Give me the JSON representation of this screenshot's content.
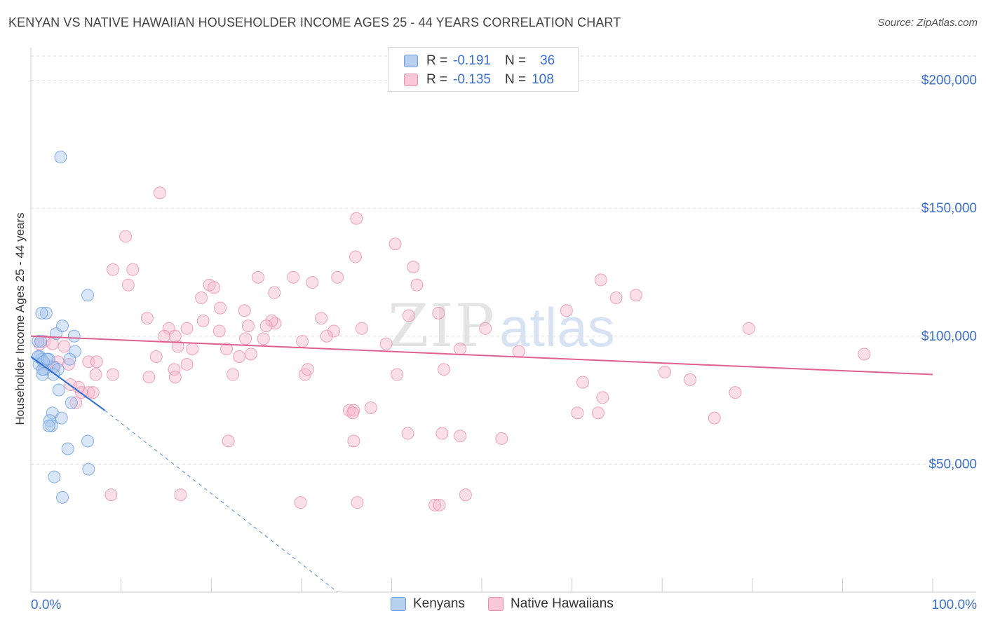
{
  "title": "KENYAN VS NATIVE HAWAIIAN HOUSEHOLDER INCOME AGES 25 - 44 YEARS CORRELATION CHART",
  "source": "Source: ZipAtlas.com",
  "watermark": {
    "zip": "ZIP",
    "atlas": "atlas"
  },
  "legend": {
    "r_label": "R =",
    "n_label": "N =",
    "series": [
      {
        "name": "Kenyans",
        "r": "-0.191",
        "n": "36",
        "fill": "#b8d0f0",
        "stroke": "#6f9fe0"
      },
      {
        "name": "Native Hawaiians",
        "r": "-0.135",
        "n": "108",
        "fill": "#f8c8d8",
        "stroke": "#e890b0"
      }
    ]
  },
  "colors": {
    "kenyan_point": "#a9c7f0",
    "kenyan_line": "#2a6dd8",
    "hawaiian_point": "#f6b9cd",
    "hawaiian_line": "#e0608f",
    "axis_label": "#3a6fd0",
    "grid": "#dddddd"
  },
  "chart_data": {
    "type": "scatter",
    "title": "KENYAN VS NATIVE HAWAIIAN HOUSEHOLDER INCOME AGES 25 - 44 YEARS CORRELATION CHART",
    "xlabel": "",
    "ylabel": "Householder Income Ages 25 - 44 years",
    "xlim": [
      0,
      100
    ],
    "ylim": [
      0,
      210000
    ],
    "x_tick_labels": [
      "0.0%",
      "100.0%"
    ],
    "y_ticks": [
      50000,
      100000,
      150000,
      200000
    ],
    "y_tick_labels": [
      "$50,000",
      "$100,000",
      "$150,000",
      "$200,000"
    ],
    "grid": true,
    "legend_position": "top-center",
    "series": [
      {
        "name": "Kenyans",
        "points": [
          [
            3.3,
            170000
          ],
          [
            0.8,
            98000
          ],
          [
            1.1,
            98000
          ],
          [
            1.0,
            92000
          ],
          [
            1.2,
            91000
          ],
          [
            0.9,
            89000
          ],
          [
            1.5,
            87000
          ],
          [
            1.3,
            85000
          ],
          [
            1.7,
            109000
          ],
          [
            1.2,
            109000
          ],
          [
            2.8,
            101000
          ],
          [
            3.5,
            104000
          ],
          [
            4.8,
            100000
          ],
          [
            4.9,
            94000
          ],
          [
            6.3,
            116000
          ],
          [
            2.0,
            91000
          ],
          [
            2.5,
            88000
          ],
          [
            3.0,
            87000
          ],
          [
            1.3,
            87000
          ],
          [
            4.3,
            91000
          ],
          [
            2.5,
            85000
          ],
          [
            3.1,
            79000
          ],
          [
            4.5,
            74000
          ],
          [
            2.4,
            70000
          ],
          [
            3.4,
            68000
          ],
          [
            2.1,
            67000
          ],
          [
            2.3,
            65000
          ],
          [
            2.0,
            65000
          ],
          [
            4.1,
            56000
          ],
          [
            6.4,
            48000
          ],
          [
            6.3,
            59000
          ],
          [
            2.6,
            45000
          ],
          [
            3.5,
            37000
          ],
          [
            0.8,
            92000
          ],
          [
            1.4,
            90000
          ],
          [
            1.8,
            91000
          ]
        ]
      },
      {
        "name": "Native Hawaiians",
        "points": [
          [
            14.3,
            156000
          ],
          [
            36.1,
            146000
          ],
          [
            10.5,
            139000
          ],
          [
            40.4,
            136000
          ],
          [
            36.0,
            131000
          ],
          [
            42.4,
            127000
          ],
          [
            9.1,
            126000
          ],
          [
            11.3,
            126000
          ],
          [
            25.2,
            123000
          ],
          [
            29.1,
            123000
          ],
          [
            34.0,
            123000
          ],
          [
            63.2,
            122000
          ],
          [
            10.8,
            120000
          ],
          [
            19.8,
            120000
          ],
          [
            31.2,
            121000
          ],
          [
            42.8,
            120000
          ],
          [
            20.3,
            119000
          ],
          [
            27.0,
            117000
          ],
          [
            64.9,
            115000
          ],
          [
            67.1,
            116000
          ],
          [
            18.9,
            115000
          ],
          [
            21.0,
            111000
          ],
          [
            23.7,
            110000
          ],
          [
            45.2,
            109000
          ],
          [
            59.4,
            110000
          ],
          [
            12.9,
            107000
          ],
          [
            19.1,
            106000
          ],
          [
            32.2,
            107000
          ],
          [
            41.9,
            108000
          ],
          [
            27.1,
            105000
          ],
          [
            26.7,
            106000
          ],
          [
            24.1,
            104000
          ],
          [
            15.3,
            103000
          ],
          [
            17.3,
            103000
          ],
          [
            20.9,
            102000
          ],
          [
            26.1,
            104000
          ],
          [
            33.6,
            102000
          ],
          [
            36.7,
            103000
          ],
          [
            50.4,
            103000
          ],
          [
            79.6,
            103000
          ],
          [
            14.8,
            100000
          ],
          [
            23.8,
            99000
          ],
          [
            25.8,
            99000
          ],
          [
            30.1,
            98000
          ],
          [
            32.8,
            100000
          ],
          [
            39.4,
            97000
          ],
          [
            16.3,
            96000
          ],
          [
            17.9,
            95000
          ],
          [
            21.7,
            95000
          ],
          [
            47.6,
            95000
          ],
          [
            54.1,
            94000
          ],
          [
            13.9,
            92000
          ],
          [
            23.1,
            92000
          ],
          [
            24.4,
            93000
          ],
          [
            92.4,
            93000
          ],
          [
            3.0,
            90000
          ],
          [
            6.4,
            90000
          ],
          [
            7.3,
            90000
          ],
          [
            1.0,
            97000
          ],
          [
            1.5,
            98000
          ],
          [
            2.4,
            97000
          ],
          [
            1.7,
            89000
          ],
          [
            2.6,
            88000
          ],
          [
            4.2,
            89000
          ],
          [
            5.3,
            80000
          ],
          [
            5.6,
            78000
          ],
          [
            6.4,
            78000
          ],
          [
            6.9,
            78000
          ],
          [
            7.2,
            85000
          ],
          [
            9.1,
            85000
          ],
          [
            3.7,
            96000
          ],
          [
            13.1,
            84000
          ],
          [
            15.9,
            87000
          ],
          [
            16.0,
            84000
          ],
          [
            17.3,
            89000
          ],
          [
            22.4,
            85000
          ],
          [
            30.4,
            85000
          ],
          [
            30.7,
            87000
          ],
          [
            40.6,
            85000
          ],
          [
            45.8,
            87000
          ],
          [
            61.2,
            82000
          ],
          [
            70.3,
            86000
          ],
          [
            73.1,
            83000
          ],
          [
            78.1,
            78000
          ],
          [
            63.4,
            76000
          ],
          [
            37.7,
            72000
          ],
          [
            35.3,
            71000
          ],
          [
            35.8,
            71000
          ],
          [
            35.7,
            70000
          ],
          [
            47.6,
            61000
          ],
          [
            60.6,
            70000
          ],
          [
            62.9,
            70000
          ],
          [
            75.8,
            68000
          ],
          [
            41.8,
            62000
          ],
          [
            45.6,
            62000
          ],
          [
            52.2,
            60000
          ],
          [
            35.8,
            59000
          ],
          [
            21.9,
            59000
          ],
          [
            16.6,
            38000
          ],
          [
            29.9,
            35000
          ],
          [
            36.2,
            35000
          ],
          [
            44.8,
            34000
          ],
          [
            45.3,
            34000
          ],
          [
            48.2,
            38000
          ],
          [
            8.9,
            38000
          ],
          [
            5.0,
            74000
          ],
          [
            4.4,
            81000
          ],
          [
            16.0,
            100000
          ]
        ]
      }
    ],
    "trend_lines": [
      {
        "series": "Kenyans",
        "x": [
          0,
          8.2
        ],
        "y": [
          92000,
          71000
        ],
        "dashed_extension_to": [
          34.0,
          0
        ]
      },
      {
        "series": "Native Hawaiians",
        "x": [
          0,
          100
        ],
        "y": [
          100000,
          85000
        ]
      }
    ]
  }
}
